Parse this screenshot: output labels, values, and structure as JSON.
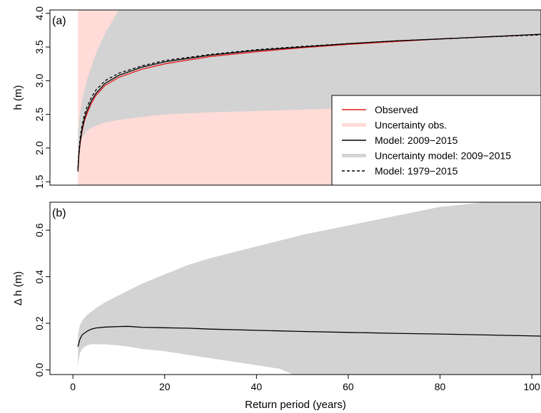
{
  "chart_data": [
    {
      "type": "line",
      "panel_label": "(a)",
      "ylabel": "h (m)",
      "xlim": [
        -5,
        102
      ],
      "ylim": [
        1.45,
        4.05
      ],
      "yticks": [
        1.5,
        2.0,
        2.5,
        3.0,
        3.5,
        4.0
      ],
      "ytick_labels": [
        "1.5",
        "2.0",
        "2.5",
        "3.0",
        "3.5",
        "4.0"
      ],
      "grid": false,
      "legend_position": "center-right",
      "colors": {
        "observed": "#e41a1c",
        "uncertainty_obs": "#ffdcd8",
        "model": "#000000",
        "uncertainty_model": "#d3d3d3"
      },
      "legend": [
        {
          "label": "Observed",
          "key": "observed",
          "style": "line"
        },
        {
          "label": "Uncertainty obs.",
          "key": "uncertainty_obs",
          "style": "band"
        },
        {
          "label": "Model: 2009−2015",
          "key": "model",
          "style": "line"
        },
        {
          "label": "Uncertainty model: 2009−2015",
          "key": "uncertainty_model",
          "style": "band"
        },
        {
          "label": "Model: 1979−2015",
          "key": "model",
          "style": "dashed"
        }
      ],
      "bands": [
        {
          "key": "uncertainty_obs",
          "x": [
            1.1,
            1.5,
            2,
            3,
            4,
            5,
            7,
            10,
            15,
            20,
            30,
            40,
            50,
            60,
            70,
            80,
            90,
            102
          ],
          "lower": [
            1.45,
            1.45,
            1.45,
            1.45,
            1.45,
            1.45,
            1.45,
            1.45,
            1.45,
            1.45,
            1.45,
            1.45,
            1.45,
            1.45,
            1.45,
            1.45,
            1.45,
            1.45
          ],
          "upper": [
            4.05,
            4.05,
            4.05,
            4.05,
            4.05,
            4.05,
            4.05,
            4.05,
            4.05,
            4.05,
            4.05,
            4.05,
            4.05,
            4.05,
            4.05,
            4.05,
            4.05,
            4.05
          ]
        },
        {
          "key": "uncertainty_model",
          "x": [
            1.1,
            1.5,
            2,
            3,
            4,
            5,
            7,
            10,
            15,
            20,
            30,
            40,
            50,
            60,
            70,
            80,
            90,
            102
          ],
          "lower": [
            1.75,
            2.05,
            2.15,
            2.25,
            2.3,
            2.33,
            2.38,
            2.42,
            2.46,
            2.5,
            2.53,
            2.55,
            2.57,
            2.59,
            2.6,
            2.6,
            2.6,
            2.6
          ],
          "upper": [
            2.2,
            2.5,
            2.7,
            3.0,
            3.2,
            3.4,
            3.7,
            4.05,
            4.05,
            4.05,
            4.05,
            4.05,
            4.05,
            4.05,
            4.05,
            4.05,
            4.05,
            4.05
          ]
        }
      ],
      "series": [
        {
          "name": "Observed",
          "key": "observed",
          "x": [
            1.1,
            1.3,
            1.6,
            2,
            2.5,
            3,
            4,
            5,
            7,
            10,
            15,
            20,
            30,
            40,
            50,
            60,
            70,
            80,
            90,
            102
          ],
          "y": [
            1.68,
            1.9,
            2.08,
            2.25,
            2.4,
            2.5,
            2.66,
            2.78,
            2.93,
            3.05,
            3.17,
            3.25,
            3.36,
            3.43,
            3.49,
            3.54,
            3.58,
            3.62,
            3.65,
            3.69
          ]
        },
        {
          "name": "Model: 2009−2015",
          "key": "model",
          "x": [
            1.1,
            1.3,
            1.6,
            2,
            2.5,
            3,
            4,
            5,
            7,
            10,
            15,
            20,
            30,
            40,
            50,
            60,
            70,
            80,
            90,
            102
          ],
          "y": [
            1.65,
            1.9,
            2.1,
            2.28,
            2.43,
            2.54,
            2.7,
            2.81,
            2.96,
            3.08,
            3.2,
            3.28,
            3.38,
            3.45,
            3.5,
            3.55,
            3.59,
            3.62,
            3.65,
            3.69
          ]
        },
        {
          "name": "Model: 1979−2015",
          "key": "model",
          "dashed": true,
          "x": [
            1.1,
            1.3,
            1.6,
            2,
            2.5,
            3,
            4,
            5,
            7,
            10,
            15,
            20,
            30,
            40,
            50,
            60,
            70,
            80,
            90,
            102
          ],
          "y": [
            1.7,
            1.95,
            2.16,
            2.34,
            2.49,
            2.6,
            2.75,
            2.86,
            3.0,
            3.11,
            3.22,
            3.3,
            3.39,
            3.46,
            3.51,
            3.55,
            3.59,
            3.62,
            3.65,
            3.68
          ]
        }
      ]
    },
    {
      "type": "line",
      "panel_label": "(b)",
      "ylabel": "Δ h (m)",
      "xlabel": "Return period (years)",
      "xlim": [
        -5,
        102
      ],
      "ylim": [
        -0.02,
        0.72
      ],
      "xticks": [
        0,
        20,
        40,
        60,
        80,
        100
      ],
      "xtick_labels": [
        "0",
        "20",
        "40",
        "60",
        "80",
        "100"
      ],
      "yticks": [
        0.0,
        0.2,
        0.4,
        0.6
      ],
      "ytick_labels": [
        "0.0",
        "0.2",
        "0.4",
        "0.6"
      ],
      "grid": false,
      "colors": {
        "band": "#d3d3d3",
        "line": "#000000"
      },
      "bands": [
        {
          "x": [
            1.1,
            1.5,
            2,
            3,
            4,
            5,
            7,
            10,
            12,
            15,
            20,
            25,
            30,
            35,
            40,
            45,
            48,
            50,
            60,
            70,
            80,
            90,
            102
          ],
          "lower": [
            0.02,
            0.07,
            0.09,
            0.105,
            0.11,
            0.11,
            0.11,
            0.105,
            0.1,
            0.09,
            0.08,
            0.065,
            0.05,
            0.035,
            0.02,
            0.005,
            -0.02,
            -0.02,
            -0.02,
            -0.02,
            -0.02,
            -0.02,
            -0.02
          ],
          "upper": [
            0.15,
            0.19,
            0.21,
            0.235,
            0.25,
            0.265,
            0.29,
            0.32,
            0.34,
            0.37,
            0.41,
            0.45,
            0.48,
            0.505,
            0.53,
            0.555,
            0.57,
            0.58,
            0.62,
            0.66,
            0.7,
            0.72,
            0.72
          ]
        }
      ],
      "series": [
        {
          "name": "",
          "x": [
            1.1,
            1.5,
            2,
            3,
            4,
            5,
            7,
            10,
            12,
            15,
            20,
            25,
            30,
            40,
            50,
            60,
            70,
            80,
            90,
            102
          ],
          "y": [
            0.1,
            0.13,
            0.15,
            0.165,
            0.175,
            0.18,
            0.184,
            0.186,
            0.187,
            0.183,
            0.181,
            0.179,
            0.175,
            0.17,
            0.165,
            0.161,
            0.157,
            0.154,
            0.15,
            0.145
          ]
        }
      ]
    }
  ]
}
